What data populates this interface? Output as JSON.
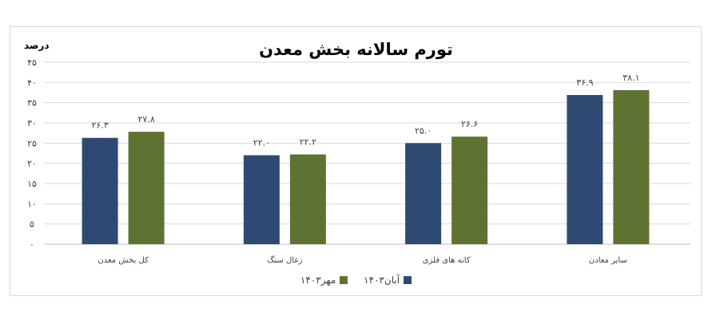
{
  "chart_data": {
    "type": "bar",
    "title": "تورم سالانه بخش معدن",
    "ylabel": "درصد",
    "xlabel": "",
    "ylim": [
      0,
      45
    ],
    "yticks": [
      "۰",
      "۵",
      "۱۰",
      "۱۵",
      "۲۰",
      "۲۵",
      "۳۰",
      "۳۵",
      "۴۰",
      "۴۵"
    ],
    "categories": [
      "کل بخش معدن",
      "زغال سنگ",
      "کانه های فلزی",
      "سایر معادن"
    ],
    "series": [
      {
        "name": "آبان۱۴۰۳",
        "color": "#2e4a72",
        "values": [
          26.3,
          22.0,
          25.0,
          36.9
        ],
        "labels": [
          "۲۶.۳",
          "۲۲.۰",
          "۲۵.۰",
          "۳۶.۹"
        ]
      },
      {
        "name": "مهر۱۴۰۳",
        "color": "#5e7331",
        "values": [
          27.8,
          22.2,
          26.6,
          38.1
        ],
        "labels": [
          "۲۷.۸",
          "۲۲.۲",
          "۲۶.۶",
          "۳۸.۱"
        ]
      }
    ],
    "grid": true,
    "legend": "bottom"
  }
}
